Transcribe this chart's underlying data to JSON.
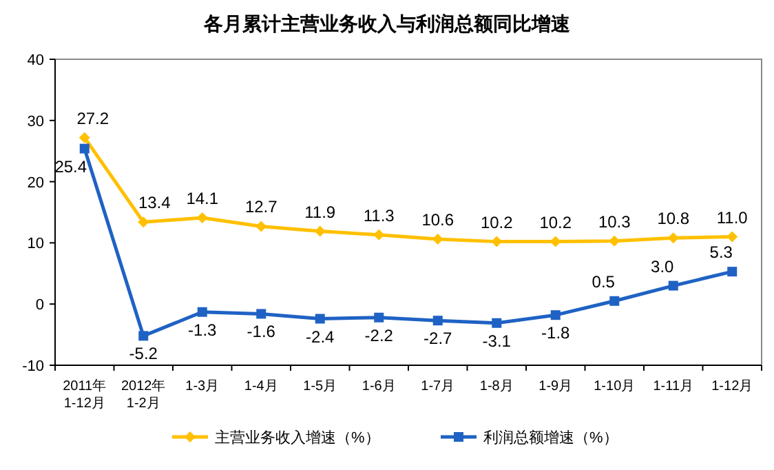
{
  "chart_data": {
    "type": "line",
    "title": "各月累计主营业务收入与利润总额同比增速",
    "categories": [
      "2011年\n1-12月",
      "2012年\n1-2月",
      "1-3月",
      "1-4月",
      "1-5月",
      "1-6月",
      "1-7月",
      "1-8月",
      "1-9月",
      "1-10月",
      "1-11月",
      "1-12月"
    ],
    "series": [
      {
        "name": "主营业务收入增速（%）",
        "color": "#ffc000",
        "marker": "diamond",
        "value_labels": [
          "27.2",
          "13.4",
          "14.1",
          "12.7",
          "11.9",
          "11.3",
          "10.6",
          "10.2",
          "10.2",
          "10.3",
          "10.8",
          "11.0"
        ],
        "values": [
          27.2,
          13.4,
          14.1,
          12.7,
          11.9,
          11.3,
          10.6,
          10.2,
          10.2,
          10.3,
          10.8,
          11.0
        ]
      },
      {
        "name": "利润总额增速（%）",
        "color": "#1f62c4",
        "marker": "square",
        "value_labels": [
          "25.4",
          "-5.2",
          "-1.3",
          "-1.6",
          "-2.4",
          "-2.2",
          "-2.7",
          "-3.1",
          "-1.8",
          "0.5",
          "3.0",
          "5.3"
        ],
        "values": [
          25.4,
          -5.2,
          -1.3,
          -1.6,
          -2.4,
          -2.2,
          -2.7,
          -3.1,
          -1.8,
          0.5,
          3.0,
          5.3
        ]
      }
    ],
    "ylim": [
      -10,
      40
    ],
    "yticks": [
      -10,
      0,
      10,
      20,
      30,
      40
    ],
    "legend": "bottom"
  }
}
